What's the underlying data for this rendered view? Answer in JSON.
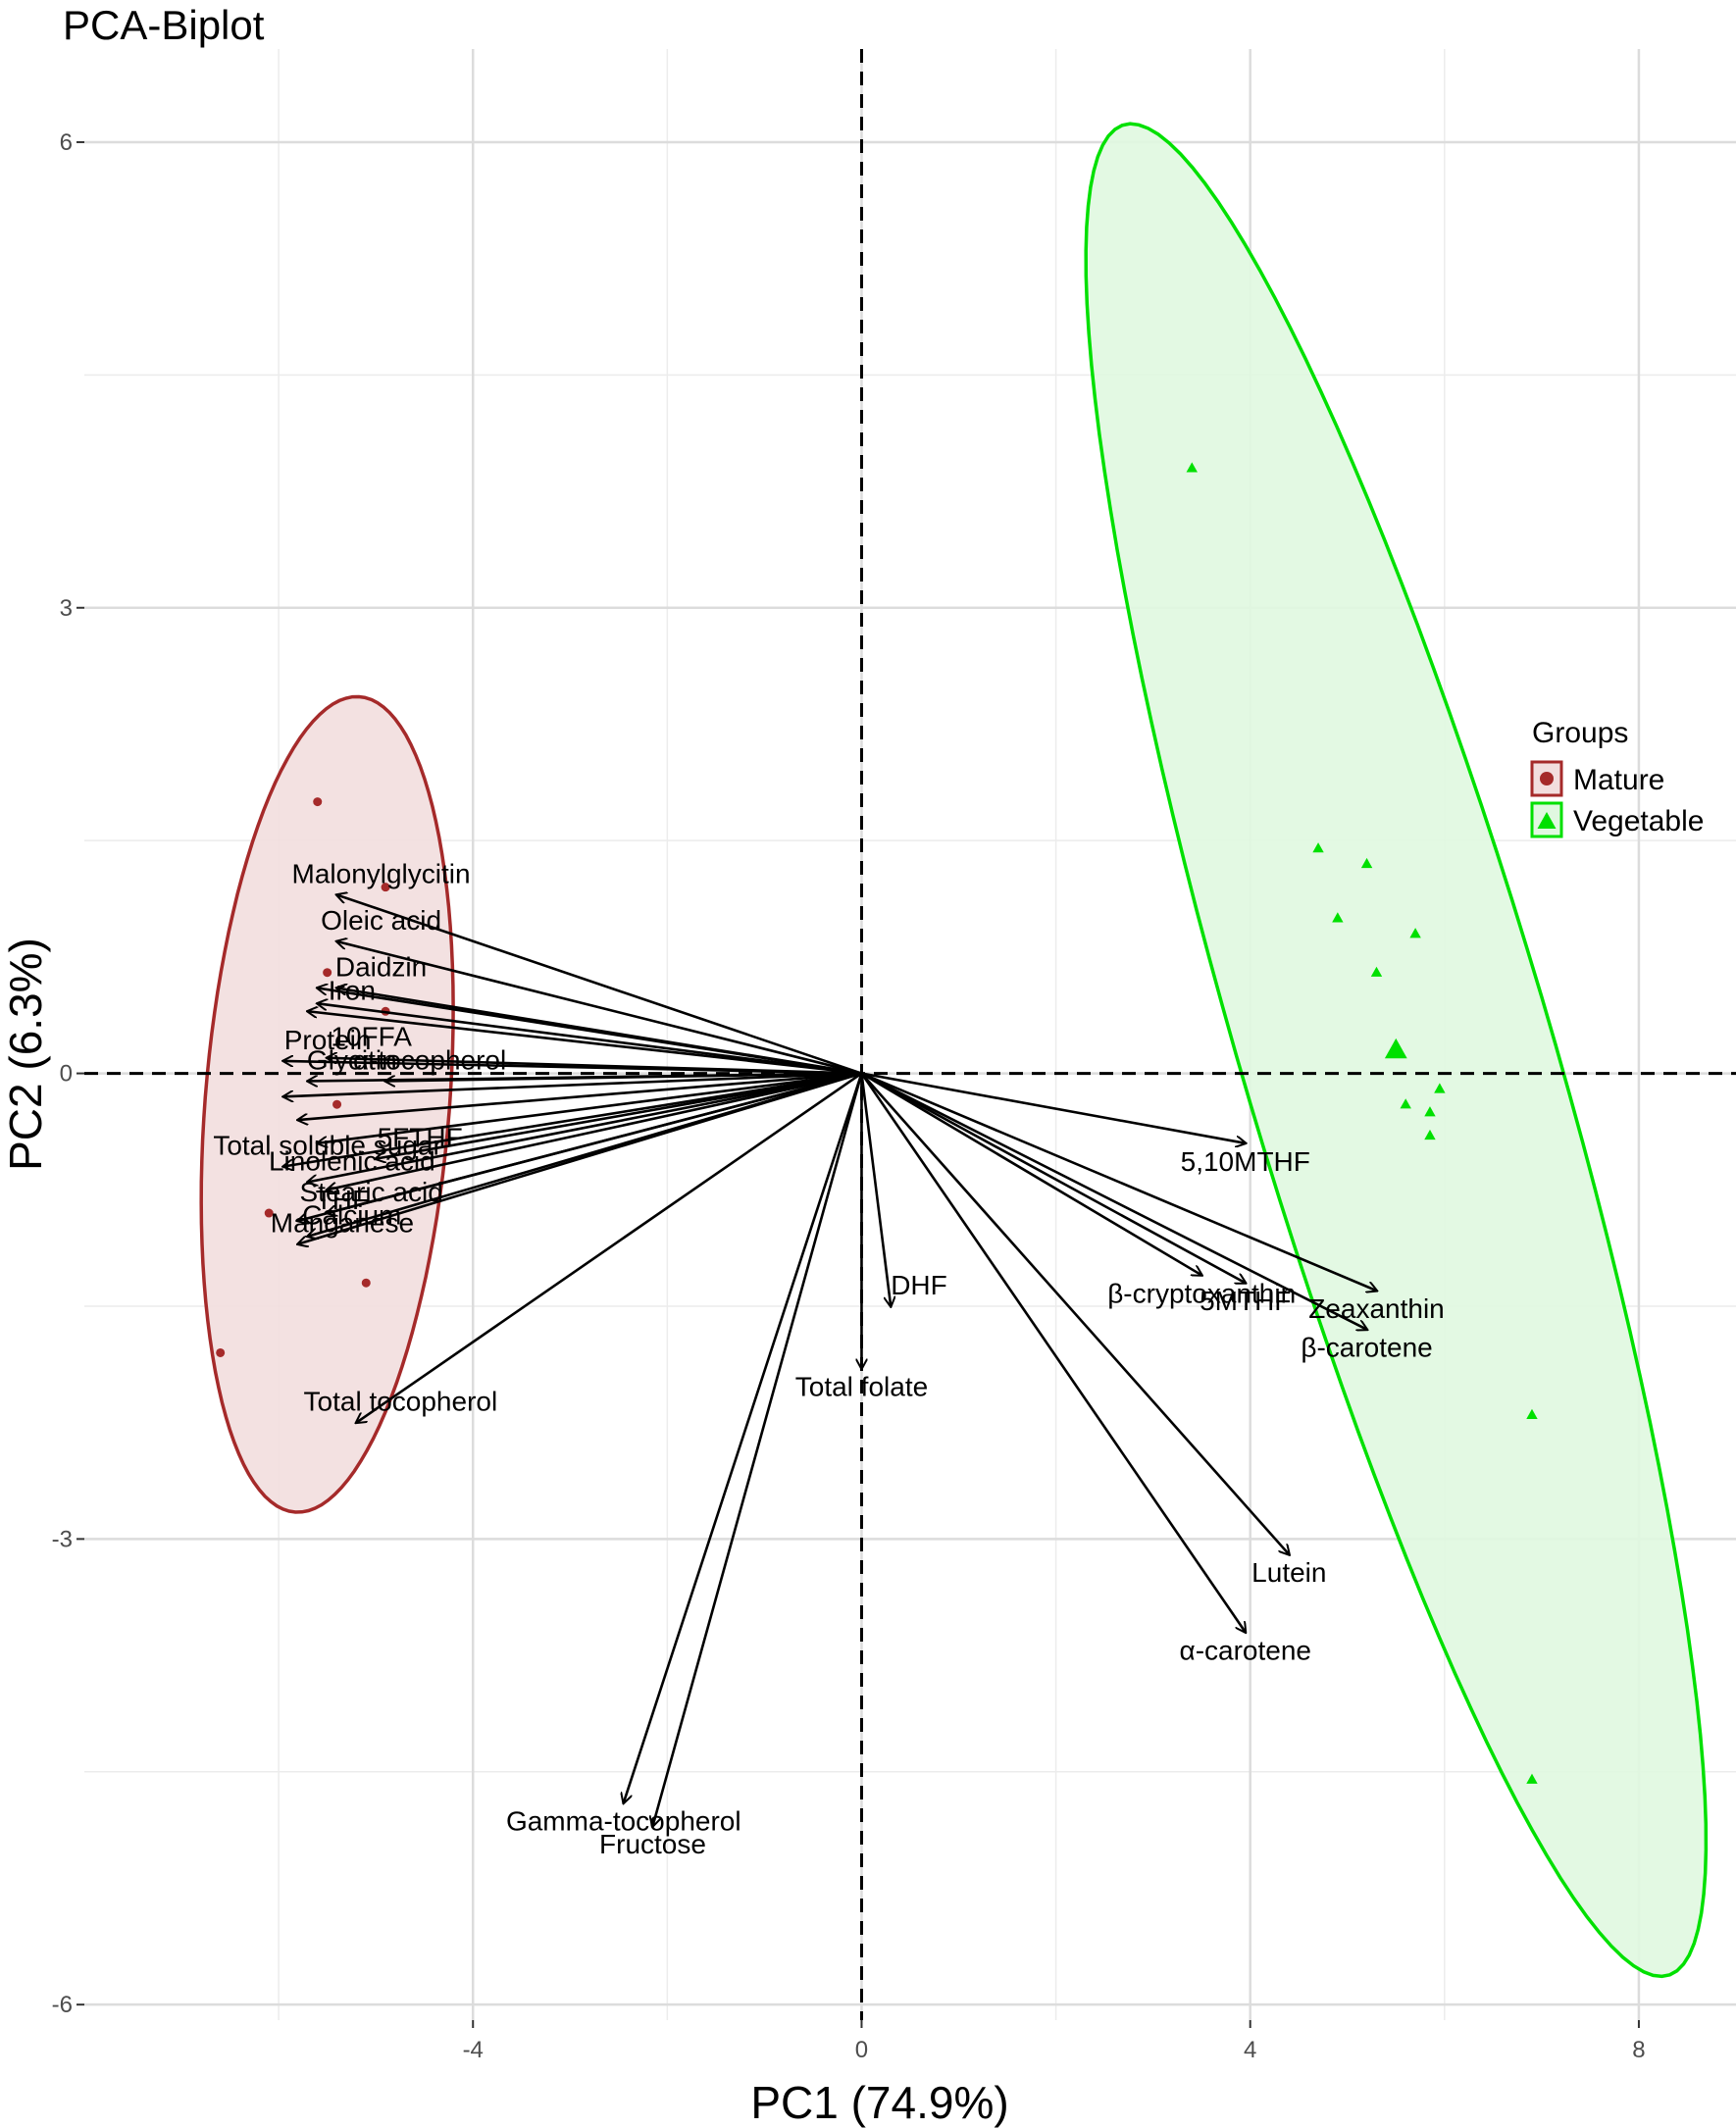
{
  "chart_data": {
    "type": "scatter",
    "title": "PCA-Biplot",
    "xlabel": "PC1 (74.9%)",
    "ylabel": "PC2 (6.3%)",
    "xlim": [
      -8,
      9
    ],
    "ylim": [
      -6.1,
      6.6
    ],
    "xticks": [
      -4,
      0,
      4,
      8
    ],
    "yticks": [
      -6,
      -3,
      0,
      3,
      6
    ],
    "xtick_labels": [
      "-4",
      "0",
      "4",
      "8"
    ],
    "ytick_labels": [
      "-6",
      "-3",
      "0",
      "3",
      "6"
    ],
    "grid": true,
    "legend": {
      "title": "Groups",
      "position": "right",
      "entries": [
        {
          "label": "Mature",
          "marker": "circle",
          "color": "#a52a2a"
        },
        {
          "label": "Vegetable",
          "marker": "triangle",
          "color": "#00e000"
        }
      ]
    },
    "series": [
      {
        "name": "Mature",
        "marker": "circle",
        "color": "#a52a2a",
        "fill": "#f2dede",
        "points": [
          {
            "x": -5.6,
            "y": 1.75
          },
          {
            "x": -4.9,
            "y": 1.2
          },
          {
            "x": -5.5,
            "y": 0.65
          },
          {
            "x": -4.9,
            "y": 0.4
          },
          {
            "x": -5.4,
            "y": -0.2
          },
          {
            "x": -6.1,
            "y": -0.9
          },
          {
            "x": -5.1,
            "y": -1.35
          },
          {
            "x": -6.6,
            "y": -1.8
          }
        ],
        "ellipse": {
          "cx": -5.5,
          "cy": -0.2,
          "rx": 2.65,
          "ry": 1.25,
          "angle_deg": 81.5
        }
      },
      {
        "name": "Vegetable",
        "marker": "triangle",
        "color": "#00e000",
        "fill": "#e0f8e0",
        "points": [
          {
            "x": 3.4,
            "y": 3.9
          },
          {
            "x": 4.7,
            "y": 1.45
          },
          {
            "x": 5.2,
            "y": 1.35
          },
          {
            "x": 4.9,
            "y": 1.0
          },
          {
            "x": 5.7,
            "y": 0.9
          },
          {
            "x": 5.3,
            "y": 0.65
          },
          {
            "x": 5.95,
            "y": -0.1
          },
          {
            "x": 5.6,
            "y": -0.2
          },
          {
            "x": 5.85,
            "y": -0.25
          },
          {
            "x": 5.85,
            "y": -0.4
          },
          {
            "x": 6.9,
            "y": -2.2
          },
          {
            "x": 6.9,
            "y": -4.55
          }
        ],
        "centroid": {
          "x": 5.5,
          "y": 0.15
        },
        "ellipse": {
          "cx": 5.5,
          "cy": 0.15,
          "rx": 6.6,
          "ry": 1.5,
          "angle_deg": -64
        }
      }
    ],
    "loadings": [
      {
        "label": "Malonylglycitin",
        "x": -5.4,
        "y": 1.15
      },
      {
        "label": "Oleic acid",
        "x": -5.4,
        "y": 0.85
      },
      {
        "label": "Daidzin",
        "x": -5.4,
        "y": 0.55
      },
      {
        "label": "",
        "x": -5.6,
        "y": 0.55
      },
      {
        "label": "",
        "x": -5.6,
        "y": 0.45
      },
      {
        "label": "10FFA",
        "x": -5.5,
        "y": 0.1
      },
      {
        "label": "Iron",
        "x": -5.7,
        "y": 0.4
      },
      {
        "label": "Protein",
        "x": -5.95,
        "y": 0.08
      },
      {
        "label": "Glycitin",
        "x": -5.7,
        "y": -0.05
      },
      {
        "label": "α-tocopherol",
        "x": -4.9,
        "y": -0.05
      },
      {
        "label": "",
        "x": -5.95,
        "y": -0.15
      },
      {
        "label": "",
        "x": -5.8,
        "y": -0.3
      },
      {
        "label": "5FTHF",
        "x": -5.0,
        "y": -0.55
      },
      {
        "label": "Total soluble sugar",
        "x": -5.95,
        "y": -0.6
      },
      {
        "label": "",
        "x": -5.6,
        "y": -0.45
      },
      {
        "label": "Linolenic acid",
        "x": -5.7,
        "y": -0.7
      },
      {
        "label": "",
        "x": -5.5,
        "y": -0.75
      },
      {
        "label": "Stearic acid",
        "x": -5.5,
        "y": -0.9
      },
      {
        "label": "THF",
        "x": -5.8,
        "y": -0.95
      },
      {
        "label": "Calcium",
        "x": -5.7,
        "y": -1.05
      },
      {
        "label": "Manganese",
        "x": -5.8,
        "y": -1.1
      },
      {
        "label": "Total tocopherol",
        "x": -5.2,
        "y": -2.25
      },
      {
        "label": "Gamma-tocopherol",
        "x": -2.45,
        "y": -4.7
      },
      {
        "label": "Fructose",
        "x": -2.15,
        "y": -4.85
      },
      {
        "label": "DHF",
        "x": 0.3,
        "y": -1.5
      },
      {
        "label": "Total folate",
        "x": 0.0,
        "y": -1.9
      },
      {
        "label": "5,10MTHF",
        "x": 3.95,
        "y": -0.45
      },
      {
        "label": "β-cryptoxanthin",
        "x": 3.5,
        "y": -1.3
      },
      {
        "label": "5MTHF",
        "x": 3.95,
        "y": -1.35
      },
      {
        "label": "Zeaxanthin",
        "x": 5.3,
        "y": -1.4
      },
      {
        "label": "β-carotene",
        "x": 5.2,
        "y": -1.65
      },
      {
        "label": "Lutein",
        "x": 4.4,
        "y": -3.1
      },
      {
        "label": "α-carotene",
        "x": 3.95,
        "y": -3.6
      }
    ]
  }
}
